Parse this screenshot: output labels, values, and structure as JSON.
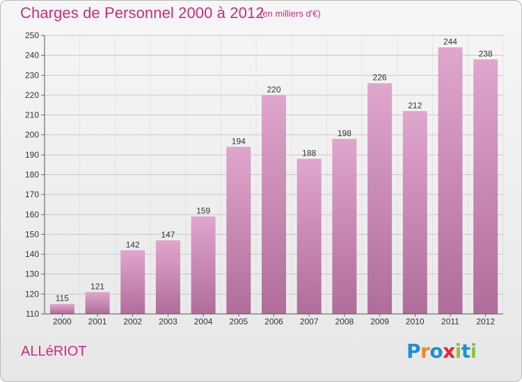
{
  "header": {
    "title": "Charges de Personnel 2000 à 2012",
    "subtitle": "(en milliers d'€)"
  },
  "footer": {
    "commune": "ALLéRIOT",
    "logo": {
      "letters": [
        "P",
        "r",
        "o",
        "x",
        "i",
        "t",
        "i"
      ],
      "colors": [
        "#1e8fd6",
        "#f08a1c",
        "#1e8fd6",
        "#e8242a",
        "#8cc43e",
        "#1e8fd6",
        "#8cc43e"
      ]
    }
  },
  "colors": {
    "bar_top": "#e0a6cc",
    "bar_bottom": "#b06d9a",
    "accent": "#d2287e",
    "grid": "#c8c8c8"
  },
  "chart_data": {
    "type": "bar",
    "title": "Charges de Personnel 2000 à 2012",
    "subtitle": "(en milliers d'€)",
    "categories": [
      "2000",
      "2001",
      "2002",
      "2003",
      "2004",
      "2005",
      "2006",
      "2007",
      "2008",
      "2009",
      "2010",
      "2011",
      "2012"
    ],
    "values": [
      115,
      121,
      142,
      147,
      159,
      194,
      220,
      188,
      198,
      226,
      212,
      244,
      238
    ],
    "yticks": [
      110,
      120,
      130,
      140,
      150,
      160,
      170,
      180,
      190,
      200,
      210,
      220,
      230,
      240,
      250
    ],
    "ylim": [
      110,
      250
    ],
    "grid": true,
    "legend": "none"
  }
}
